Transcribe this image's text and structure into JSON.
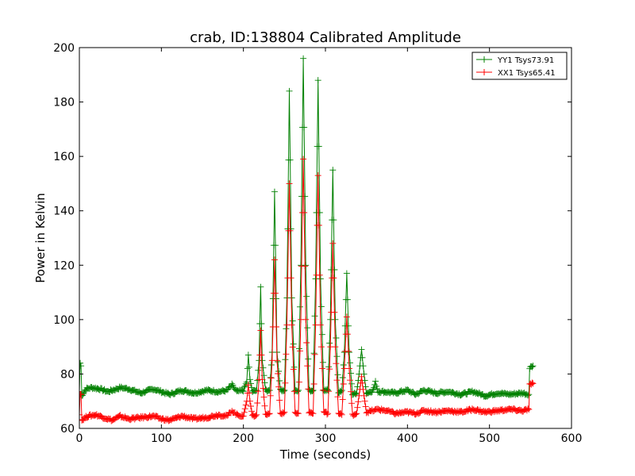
{
  "chart_data": {
    "type": "line",
    "title": "crab, ID:138804 Calibrated Amplitude",
    "xlabel": "Time (seconds)",
    "ylabel": "Power in Kelvin",
    "xlim": [
      0,
      600
    ],
    "ylim": [
      60,
      200
    ],
    "xticks": [
      0,
      100,
      200,
      300,
      400,
      500,
      600
    ],
    "yticks": [
      60,
      80,
      100,
      120,
      140,
      160,
      180,
      200
    ],
    "grid": false,
    "legend": "top-right",
    "marker": "plus",
    "series": [
      {
        "name": "YY1 Tsys73.91",
        "color": "#008000",
        "points": [
          [
            0,
            73.5
          ],
          [
            1,
            84
          ],
          [
            2,
            83
          ],
          [
            3,
            72
          ],
          [
            4,
            72.5
          ],
          [
            8,
            74.5
          ],
          [
            15,
            75
          ],
          [
            25,
            74.5
          ],
          [
            35,
            73.5
          ],
          [
            50,
            75
          ],
          [
            60,
            74.5
          ],
          [
            75,
            73
          ],
          [
            90,
            74.5
          ],
          [
            100,
            73.5
          ],
          [
            110,
            72.5
          ],
          [
            125,
            74
          ],
          [
            140,
            73
          ],
          [
            155,
            74
          ],
          [
            170,
            73.5
          ],
          [
            180,
            74
          ],
          [
            186,
            76
          ],
          [
            192,
            73.5
          ],
          [
            200,
            74
          ],
          [
            204,
            77
          ],
          [
            206,
            87
          ],
          [
            208,
            78
          ],
          [
            211,
            73.5
          ],
          [
            216,
            74
          ],
          [
            219,
            85
          ],
          [
            221,
            112
          ],
          [
            223,
            85
          ],
          [
            227,
            74
          ],
          [
            232,
            74
          ],
          [
            235,
            88
          ],
          [
            238,
            147
          ],
          [
            241,
            88
          ],
          [
            245,
            74
          ],
          [
            250,
            74
          ],
          [
            253,
            108
          ],
          [
            256,
            184
          ],
          [
            259,
            108
          ],
          [
            263,
            74
          ],
          [
            267,
            74
          ],
          [
            270,
            120
          ],
          [
            273,
            196
          ],
          [
            276,
            120
          ],
          [
            280,
            74
          ],
          [
            285,
            74
          ],
          [
            288,
            115
          ],
          [
            291,
            188
          ],
          [
            294,
            115
          ],
          [
            298,
            74
          ],
          [
            303,
            74
          ],
          [
            306,
            100
          ],
          [
            309,
            155
          ],
          [
            312,
            100
          ],
          [
            316,
            73
          ],
          [
            320,
            74
          ],
          [
            323,
            88
          ],
          [
            326,
            117
          ],
          [
            329,
            88
          ],
          [
            333,
            72.5
          ],
          [
            338,
            73
          ],
          [
            341,
            80
          ],
          [
            344,
            89
          ],
          [
            347,
            80
          ],
          [
            350,
            73
          ],
          [
            355,
            73.5
          ],
          [
            358,
            74
          ],
          [
            361,
            77
          ],
          [
            364,
            73.5
          ],
          [
            370,
            73.5
          ],
          [
            385,
            73
          ],
          [
            400,
            74
          ],
          [
            410,
            72.5
          ],
          [
            420,
            74
          ],
          [
            435,
            73
          ],
          [
            450,
            73.5
          ],
          [
            465,
            72.5
          ],
          [
            480,
            73.5
          ],
          [
            495,
            72
          ],
          [
            510,
            73
          ],
          [
            525,
            72.5
          ],
          [
            540,
            73
          ],
          [
            548,
            72.5
          ],
          [
            549,
            82
          ],
          [
            551,
            83
          ],
          [
            553,
            83
          ]
        ]
      },
      {
        "name": "XX1 Tsys65.41",
        "color": "#ff0000",
        "points": [
          [
            0,
            65
          ],
          [
            1,
            73
          ],
          [
            2,
            72.5
          ],
          [
            3,
            63
          ],
          [
            5,
            63.5
          ],
          [
            10,
            64.5
          ],
          [
            20,
            65
          ],
          [
            30,
            64
          ],
          [
            40,
            63
          ],
          [
            50,
            64.5
          ],
          [
            60,
            63.5
          ],
          [
            75,
            64
          ],
          [
            90,
            64.5
          ],
          [
            100,
            63.5
          ],
          [
            110,
            63
          ],
          [
            125,
            64.5
          ],
          [
            140,
            63.5
          ],
          [
            155,
            64
          ],
          [
            170,
            65
          ],
          [
            180,
            64.5
          ],
          [
            186,
            66.5
          ],
          [
            192,
            65
          ],
          [
            200,
            64.5
          ],
          [
            204,
            70
          ],
          [
            206,
            76
          ],
          [
            208,
            70
          ],
          [
            211,
            64.5
          ],
          [
            216,
            65
          ],
          [
            219,
            78
          ],
          [
            221,
            96
          ],
          [
            223,
            78
          ],
          [
            227,
            65
          ],
          [
            232,
            65.5
          ],
          [
            235,
            85
          ],
          [
            238,
            122
          ],
          [
            241,
            85
          ],
          [
            245,
            65.5
          ],
          [
            250,
            66
          ],
          [
            253,
            98
          ],
          [
            256,
            150
          ],
          [
            259,
            98
          ],
          [
            263,
            65.5
          ],
          [
            267,
            65.5
          ],
          [
            270,
            100
          ],
          [
            273,
            159
          ],
          [
            276,
            100
          ],
          [
            280,
            66
          ],
          [
            285,
            65.5
          ],
          [
            288,
            98
          ],
          [
            291,
            153
          ],
          [
            294,
            98
          ],
          [
            298,
            66
          ],
          [
            303,
            65.5
          ],
          [
            306,
            90
          ],
          [
            309,
            128
          ],
          [
            312,
            90
          ],
          [
            316,
            65.5
          ],
          [
            320,
            65
          ],
          [
            323,
            82
          ],
          [
            326,
            101
          ],
          [
            329,
            82
          ],
          [
            333,
            65
          ],
          [
            338,
            65.5
          ],
          [
            341,
            72
          ],
          [
            344,
            79
          ],
          [
            347,
            72
          ],
          [
            350,
            66
          ],
          [
            358,
            66.5
          ],
          [
            364,
            67
          ],
          [
            375,
            66.5
          ],
          [
            385,
            65.5
          ],
          [
            400,
            66
          ],
          [
            410,
            65.5
          ],
          [
            420,
            66.5
          ],
          [
            435,
            66
          ],
          [
            450,
            66.5
          ],
          [
            465,
            66
          ],
          [
            480,
            67
          ],
          [
            495,
            66
          ],
          [
            510,
            66.5
          ],
          [
            525,
            67
          ],
          [
            540,
            66.5
          ],
          [
            548,
            67
          ],
          [
            549,
            76
          ],
          [
            551,
            76.5
          ],
          [
            553,
            76.5
          ]
        ]
      }
    ]
  }
}
